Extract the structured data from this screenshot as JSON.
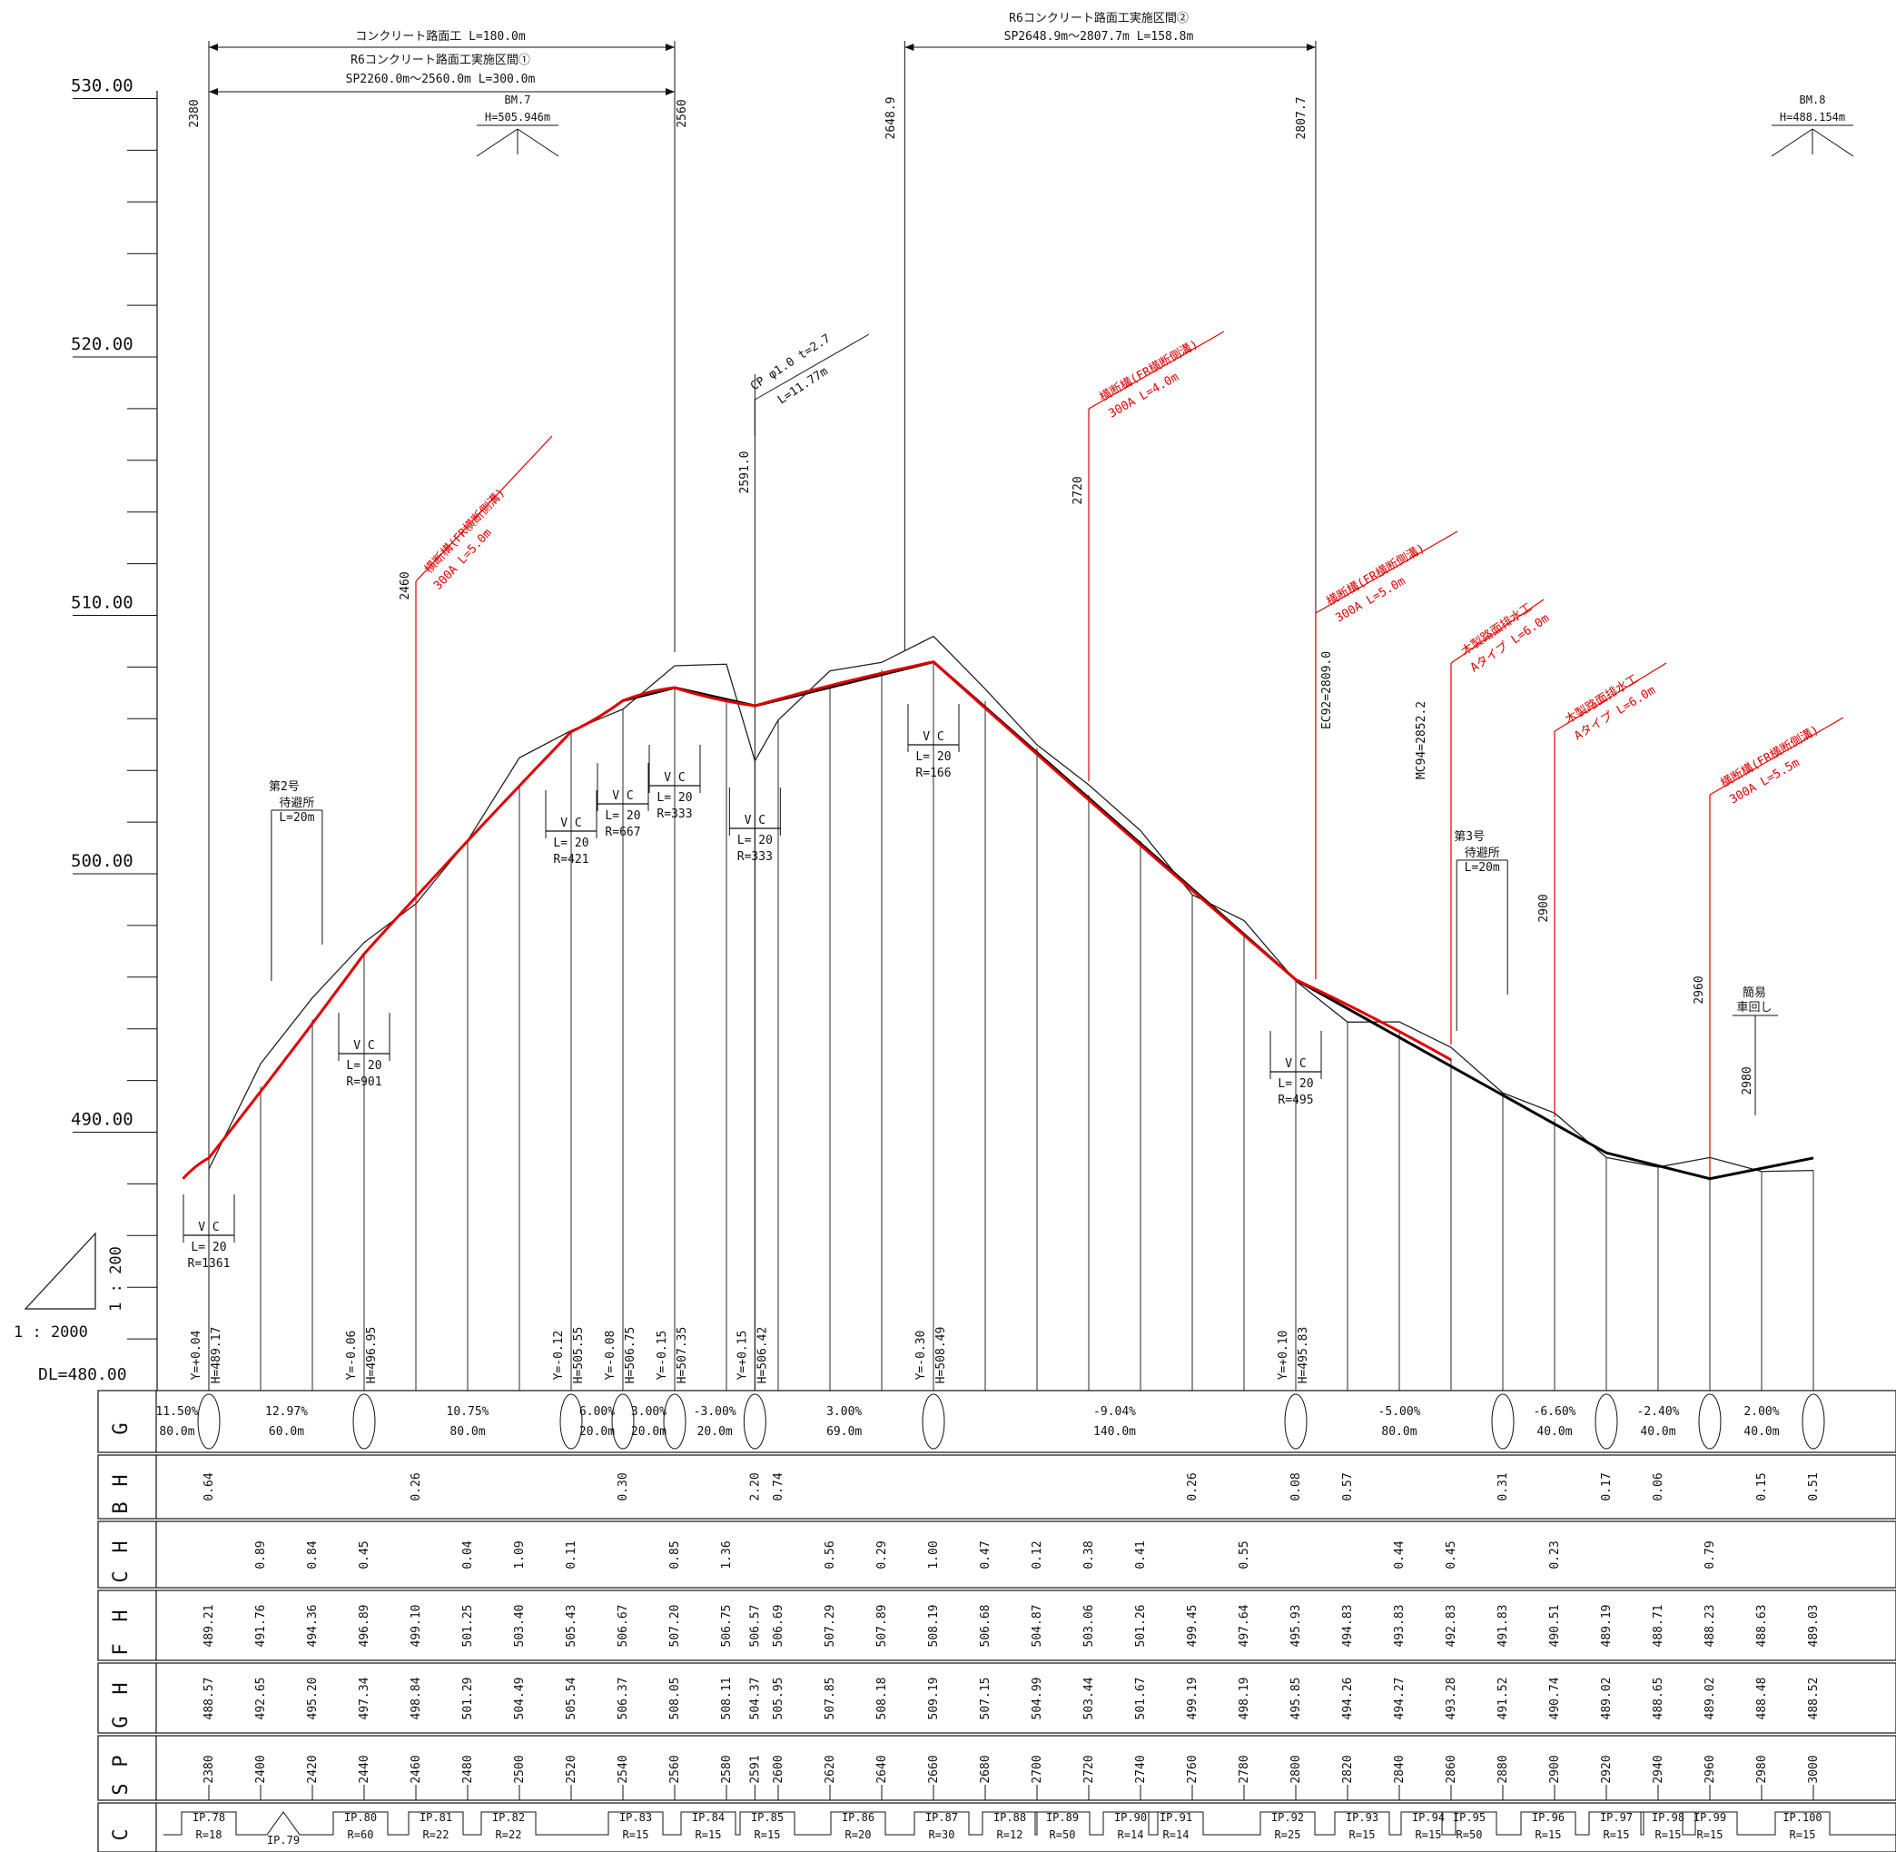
{
  "datum": "DL=480.00",
  "scale": {
    "horizontal": "1 : 2000",
    "vertical": "1 : 200"
  },
  "elevation_labels": [
    "530.00",
    "520.00",
    "510.00",
    "500.00",
    "490.00"
  ],
  "sections": [
    {
      "text": "コンクリート路面工 L=180.0m"
    },
    {
      "text": "R6コンクリート路面工実施区間①"
    },
    {
      "text": "SP2260.0m～2560.0m L=300.0m"
    },
    {
      "text": "R6コンクリート路面工実施区間②"
    },
    {
      "text": "SP2648.9m～2807.7m L=158.8m"
    }
  ],
  "benchmarks": [
    {
      "name": "BM.7",
      "height": "H=505.946m"
    },
    {
      "name": "BM.8",
      "height": "H=488.154m"
    }
  ],
  "station_marks": [
    "2380",
    "2560",
    "2648.9",
    "2807.7",
    "2460",
    "2591.0",
    "2720",
    "EC92=2809.0",
    "MC94=2852.2",
    "2900",
    "2960",
    "2980"
  ],
  "callouts": [
    {
      "l1": "CP φ1.0 t=2.7",
      "l2": "L=11.77m"
    },
    {
      "l1": "横断構(FR横断側溝)",
      "l2": "300A L=5.0m"
    },
    {
      "l1": "横断構(FR横断側溝)",
      "l2": "300A L=4.0m"
    },
    {
      "l1": "横断構(FR横断側溝)",
      "l2": "300A L=5.0m"
    },
    {
      "l1": "木製路面排水工",
      "l2": "Aタイプ L=6.0m"
    },
    {
      "l1": "木製路面排水工",
      "l2": "Aタイプ L=6.0m"
    },
    {
      "l1": "横断構(FR横断側溝)",
      "l2": "300A L=5.5m"
    }
  ],
  "shelters": [
    {
      "name": "第2号",
      "kind": "待避所",
      "len": "L=20m"
    },
    {
      "name": "第3号",
      "kind": "待避所",
      "len": "L=20m"
    }
  ],
  "turnaround": {
    "l1": "簡易",
    "l2": "車回し"
  },
  "vc_curves": [
    {
      "vc": "V C",
      "L": "L= 20",
      "R": "R=1361"
    },
    {
      "vc": "V C",
      "L": "L= 20",
      "R": "R=901"
    },
    {
      "vc": "V C",
      "L": "L= 20",
      "R": "R=421"
    },
    {
      "vc": "V C",
      "L": "L= 20",
      "R": "R=667"
    },
    {
      "vc": "V C",
      "L": "L= 20",
      "R": "R=333"
    },
    {
      "vc": "V C",
      "L": "L= 20",
      "R": "R=333"
    },
    {
      "vc": "V C",
      "L": "L= 20",
      "R": "R=166"
    },
    {
      "vc": "V C",
      "L": "L= 20",
      "R": "R=495"
    }
  ],
  "pvi_labels": [
    "Y=+0.04",
    "H=489.17",
    "Y=-0.06",
    "H=496.95",
    "Y=-0.12",
    "H=505.55",
    "Y=-0.08",
    "H=506.75",
    "Y=-0.15",
    "H=507.35",
    "Y=+0.15",
    "H=506.42",
    "Y=-0.30",
    "H=508.49",
    "Y=+0.10",
    "H=495.83"
  ],
  "table": {
    "row_labels": [
      [
        "G"
      ],
      [
        "H",
        "B"
      ],
      [
        "H",
        "C"
      ],
      [
        "H",
        "F"
      ],
      [
        "H",
        "G"
      ],
      [
        "P",
        "S"
      ],
      [
        "C"
      ]
    ],
    "grade_segments": [
      {
        "g": "11.50%",
        "l": "80.0m"
      },
      {
        "g": "12.97%",
        "l": "60.0m"
      },
      {
        "g": "10.75%",
        "l": "80.0m"
      },
      {
        "g": "6.00%",
        "l": "20.0m"
      },
      {
        "g": "3.00%",
        "l": "20.0m"
      },
      {
        "g": "-3.00%",
        "l": "20.0m"
      },
      {
        "g": "3.00%",
        "l": "69.0m"
      },
      {
        "g": "-9.04%",
        "l": "140.0m"
      },
      {
        "g": "-5.00%",
        "l": "80.0m"
      },
      {
        "g": "-6.60%",
        "l": "40.0m"
      },
      {
        "g": "-2.40%",
        "l": "40.0m"
      },
      {
        "g": "2.00%",
        "l": "40.0m"
      }
    ],
    "hb_values": [
      "0.64",
      "0.26",
      "0.30",
      "2.20",
      "0.74",
      "0.26",
      "0.08",
      "0.57",
      "0.31",
      "0.17",
      "0.06",
      "0.15",
      "0.51"
    ],
    "hc_values": [
      "0.89",
      "0.84",
      "0.45",
      "0.04",
      "1.09",
      "0.11",
      "0.85",
      "1.36",
      "0.56",
      "0.29",
      "1.00",
      "0.47",
      "0.12",
      "0.38",
      "0.41",
      "0.55",
      "0.44",
      "0.45",
      "0.23",
      "0.79"
    ],
    "fh_values": [
      "489.21",
      "491.76",
      "494.36",
      "496.89",
      "499.10",
      "501.25",
      "503.40",
      "505.43",
      "506.67",
      "507.20",
      "506.75",
      "506.57",
      "506.69",
      "507.29",
      "507.89",
      "508.19",
      "506.68",
      "504.87",
      "503.06",
      "501.26",
      "499.45",
      "497.64",
      "495.93",
      "494.83",
      "493.83",
      "492.83",
      "491.83",
      "490.51",
      "489.19",
      "488.71",
      "488.23",
      "488.63",
      "489.03"
    ],
    "gh_values": [
      "488.57",
      "492.65",
      "495.20",
      "497.34",
      "498.84",
      "501.29",
      "504.49",
      "505.54",
      "506.37",
      "508.05",
      "508.11",
      "504.37",
      "505.95",
      "507.85",
      "508.18",
      "509.19",
      "507.15",
      "504.99",
      "503.44",
      "501.67",
      "499.19",
      "498.19",
      "495.85",
      "494.26",
      "494.27",
      "493.28",
      "491.52",
      "490.74",
      "489.02",
      "488.65",
      "489.02",
      "488.48",
      "488.52"
    ],
    "stations": [
      "2380",
      "2400",
      "2420",
      "2440",
      "2460",
      "2480",
      "2500",
      "2520",
      "2540",
      "2560",
      "2580",
      "2591",
      "2600",
      "2620",
      "2640",
      "2660",
      "2680",
      "2700",
      "2720",
      "2740",
      "2760",
      "2780",
      "2800",
      "2820",
      "2840",
      "2860",
      "2880",
      "2900",
      "2920",
      "2940",
      "2960",
      "2980",
      "3000"
    ],
    "curves": [
      {
        "ip": "IP.78",
        "r": "R=18"
      },
      {
        "ip": "IP.79",
        "r": ""
      },
      {
        "ip": "IP.80",
        "r": "R=60"
      },
      {
        "ip": "IP.81",
        "r": "R=22"
      },
      {
        "ip": "IP.82",
        "r": "R=22"
      },
      {
        "ip": "IP.83",
        "r": "R=15"
      },
      {
        "ip": "IP.84",
        "r": "R=15"
      },
      {
        "ip": "IP.85",
        "r": "R=15"
      },
      {
        "ip": "IP.86",
        "r": "R=20"
      },
      {
        "ip": "IP.87",
        "r": "R=30"
      },
      {
        "ip": "IP.88",
        "r": "R=12"
      },
      {
        "ip": "IP.89",
        "r": "R=50"
      },
      {
        "ip": "IP.90",
        "r": "R=14"
      },
      {
        "ip": "IP.91",
        "r": "R=14"
      },
      {
        "ip": "IP.92",
        "r": "R=25"
      },
      {
        "ip": "IP.93",
        "r": "R=15"
      },
      {
        "ip": "IP.94",
        "r": "R=15"
      },
      {
        "ip": "IP.95",
        "r": "R=50"
      },
      {
        "ip": "IP.96",
        "r": "R=15"
      },
      {
        "ip": "IP.97",
        "r": "R=15"
      },
      {
        "ip": "IP.98",
        "r": "R=15"
      },
      {
        "ip": "IP.99",
        "r": "R=15"
      },
      {
        "ip": "IP.100",
        "r": "R=15"
      }
    ]
  },
  "chart_data": {
    "type": "line",
    "x_stations": [
      2380,
      2400,
      2420,
      2440,
      2460,
      2480,
      2500,
      2520,
      2540,
      2560,
      2580,
      2591,
      2600,
      2620,
      2640,
      2660,
      2680,
      2700,
      2720,
      2740,
      2760,
      2780,
      2800,
      2820,
      2840,
      2860,
      2880,
      2900,
      2920,
      2940,
      2960,
      2980,
      3000
    ],
    "ground_height": [
      488.57,
      492.65,
      495.2,
      497.34,
      498.84,
      501.29,
      504.49,
      505.54,
      506.37,
      508.05,
      508.11,
      504.37,
      505.95,
      507.85,
      508.18,
      509.19,
      507.15,
      504.99,
      503.44,
      501.67,
      499.19,
      498.19,
      495.85,
      494.26,
      494.27,
      493.28,
      491.52,
      490.74,
      489.02,
      488.65,
      489.02,
      488.48,
      488.52
    ],
    "formation_height": [
      489.21,
      491.76,
      494.36,
      496.89,
      499.1,
      501.25,
      503.4,
      505.43,
      506.67,
      507.2,
      506.75,
      506.57,
      506.69,
      507.29,
      507.89,
      508.19,
      506.68,
      504.87,
      503.06,
      501.26,
      499.45,
      497.64,
      495.93,
      494.83,
      493.83,
      492.83,
      491.83,
      490.51,
      489.19,
      488.71,
      488.23,
      488.63,
      489.03
    ],
    "ylim": [
      480,
      532
    ],
    "xlim": [
      2380,
      3000
    ],
    "design_line_red": [
      [
        2370,
        488.2
      ],
      [
        2380,
        489.0
      ],
      [
        2440,
        496.9
      ],
      [
        2520,
        505.5
      ],
      [
        2540,
        506.7
      ],
      [
        2560,
        507.2
      ],
      [
        2591,
        506.5
      ],
      [
        2660,
        508.2
      ],
      [
        2800,
        495.9
      ],
      [
        2860,
        492.8
      ]
    ],
    "design_line_black": [
      [
        2540,
        506.7
      ],
      [
        2560,
        507.2
      ],
      [
        2591,
        506.5
      ],
      [
        2660,
        508.2
      ],
      [
        2800,
        495.9
      ],
      [
        2920,
        489.2
      ],
      [
        2960,
        488.2
      ],
      [
        3000,
        489.0
      ]
    ]
  }
}
